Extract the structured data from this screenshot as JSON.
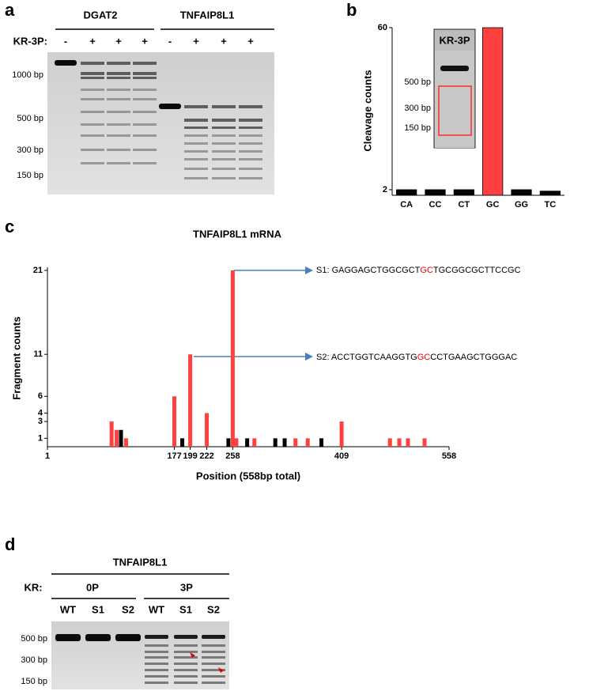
{
  "panels": {
    "a": {
      "label": "a",
      "groups": [
        "DGAT2",
        "TNFAIP8L1"
      ],
      "treatment_label": "KR-3P:",
      "lanes": [
        "-",
        "+",
        "+",
        "+",
        "-",
        "+",
        "+",
        "+"
      ],
      "markers": [
        "1000 bp",
        "500 bp",
        "300 bp",
        "150 bp"
      ]
    },
    "d": {
      "label": "d",
      "title": "TNFAIP8L1",
      "treatment_label": "KR:",
      "groups": [
        "0P",
        "3P"
      ],
      "lanes": [
        "WT",
        "S1",
        "S2",
        "WT",
        "S1",
        "S2"
      ],
      "markers": [
        "500 bp",
        "300 bp",
        "150 bp"
      ]
    }
  },
  "chart_data": [
    {
      "type": "bar",
      "label": "b",
      "ylabel": "Cleavage counts",
      "categories": [
        "CA",
        "CC",
        "CT",
        "GC",
        "GG",
        "TC"
      ],
      "values": [
        2,
        2,
        2,
        60,
        2,
        1.5
      ],
      "colors": [
        "#000000",
        "#000000",
        "#000000",
        "#ff4040",
        "#000000",
        "#000000"
      ],
      "ylim": [
        0,
        60
      ],
      "yticks": [
        2,
        60
      ],
      "inset": {
        "title": "KR-3P",
        "markers": [
          "500 bp",
          "300 bp",
          "150 bp"
        ]
      }
    },
    {
      "type": "bar",
      "label": "c",
      "title": "TNFAIP8L1 mRNA",
      "xlabel": "Position (558bp total)",
      "ylabel": "Fragment counts",
      "series": [
        {
          "color": "#ff4040",
          "x": [
            90,
            97,
            110,
            177,
            199,
            222,
            258,
            263,
            288,
            345,
            362,
            409,
            476,
            489,
            501,
            524
          ],
          "values": [
            3,
            2,
            1,
            6,
            11,
            4,
            21,
            1,
            1,
            1,
            1,
            3,
            1,
            1,
            1,
            1
          ]
        },
        {
          "color": "#000000",
          "x": [
            103,
            188,
            252,
            278,
            317,
            330,
            381
          ],
          "values": [
            2,
            1,
            1,
            1,
            1,
            1,
            1
          ]
        }
      ],
      "xlim": [
        1,
        558
      ],
      "xticks": [
        1,
        177,
        199,
        222,
        258,
        409,
        558
      ],
      "ylim": [
        0,
        21
      ],
      "yticks": [
        1,
        3,
        4,
        6,
        11,
        21
      ],
      "highlight_color": "#ff0000",
      "annotations": [
        {
          "parts": [
            "S1: GAGGAGCTGGCGCT",
            "GC",
            "TGCGGCGCTTCCGC"
          ]
        },
        {
          "parts": [
            "S2: ACCTGGTCAAGGTG",
            "GC",
            "CCTGAAGCTGGGAC"
          ]
        }
      ]
    }
  ]
}
